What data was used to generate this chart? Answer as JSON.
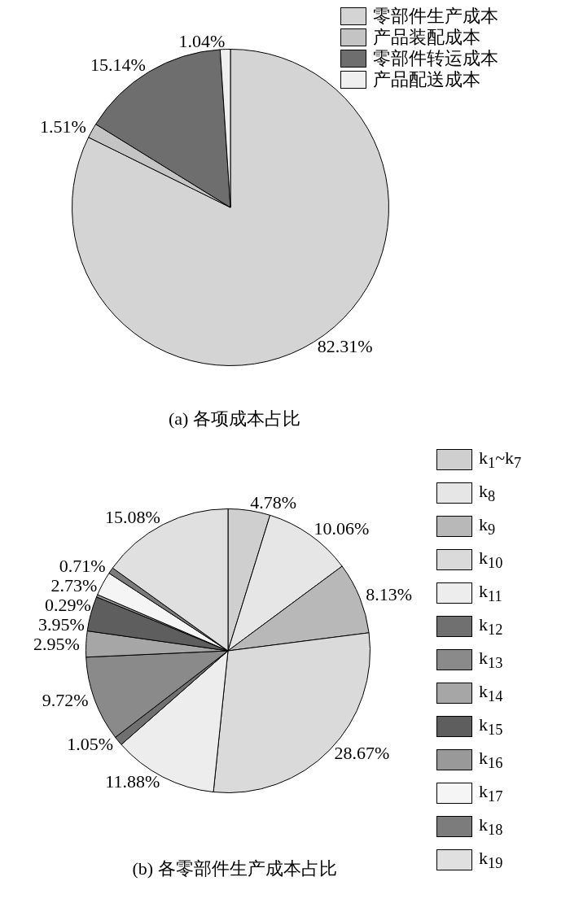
{
  "chart_data": [
    {
      "type": "pie",
      "title": "(a) 各项成本占比",
      "legend": "top right",
      "categories": [
        "零部件生产成本",
        "产品装配成本",
        "零部件转运成本",
        "产品配送成本"
      ],
      "values": [
        82.31,
        1.51,
        15.14,
        1.04
      ],
      "value_labels": [
        "82.31%",
        "1.51%",
        "15.14%",
        "1.04%"
      ],
      "colors": [
        "#d4d4d4",
        "#c4c4c4",
        "#6e6e6e",
        "#efefef"
      ]
    },
    {
      "type": "pie",
      "title": "(b) 各零部件生产成本占比",
      "legend": "right",
      "categories": [
        "k$_{1}$~k$_{7}$",
        "k$_{8}$",
        "k$_{9}$",
        "k$_{10}$",
        "k$_{11}$",
        "k$_{12}$",
        "k$_{13}$",
        "k$_{14}$",
        "k$_{15}$",
        "k$_{16}$",
        "k$_{17}$",
        "k$_{18}$",
        "k$_{19}$"
      ],
      "values": [
        4.78,
        10.06,
        8.13,
        28.67,
        11.88,
        1.05,
        9.72,
        2.95,
        3.95,
        0.29,
        2.73,
        0.71,
        15.08
      ],
      "value_labels": [
        "4.78%",
        "10.06%",
        "8.13%",
        "28.67%",
        "11.88%",
        "1.05%",
        "9.72%",
        "2.95%",
        "3.95%",
        "0.29%",
        "2.73%",
        "0.71%",
        "15.08%"
      ],
      "colors": [
        "#cfcfcf",
        "#e6e6e6",
        "#b8b8b8",
        "#dadada",
        "#ededed",
        "#707070",
        "#8a8a8a",
        "#a6a6a6",
        "#5e5e5e",
        "#999999",
        "#f5f5f5",
        "#7c7c7c",
        "#e0e0e0"
      ]
    }
  ]
}
